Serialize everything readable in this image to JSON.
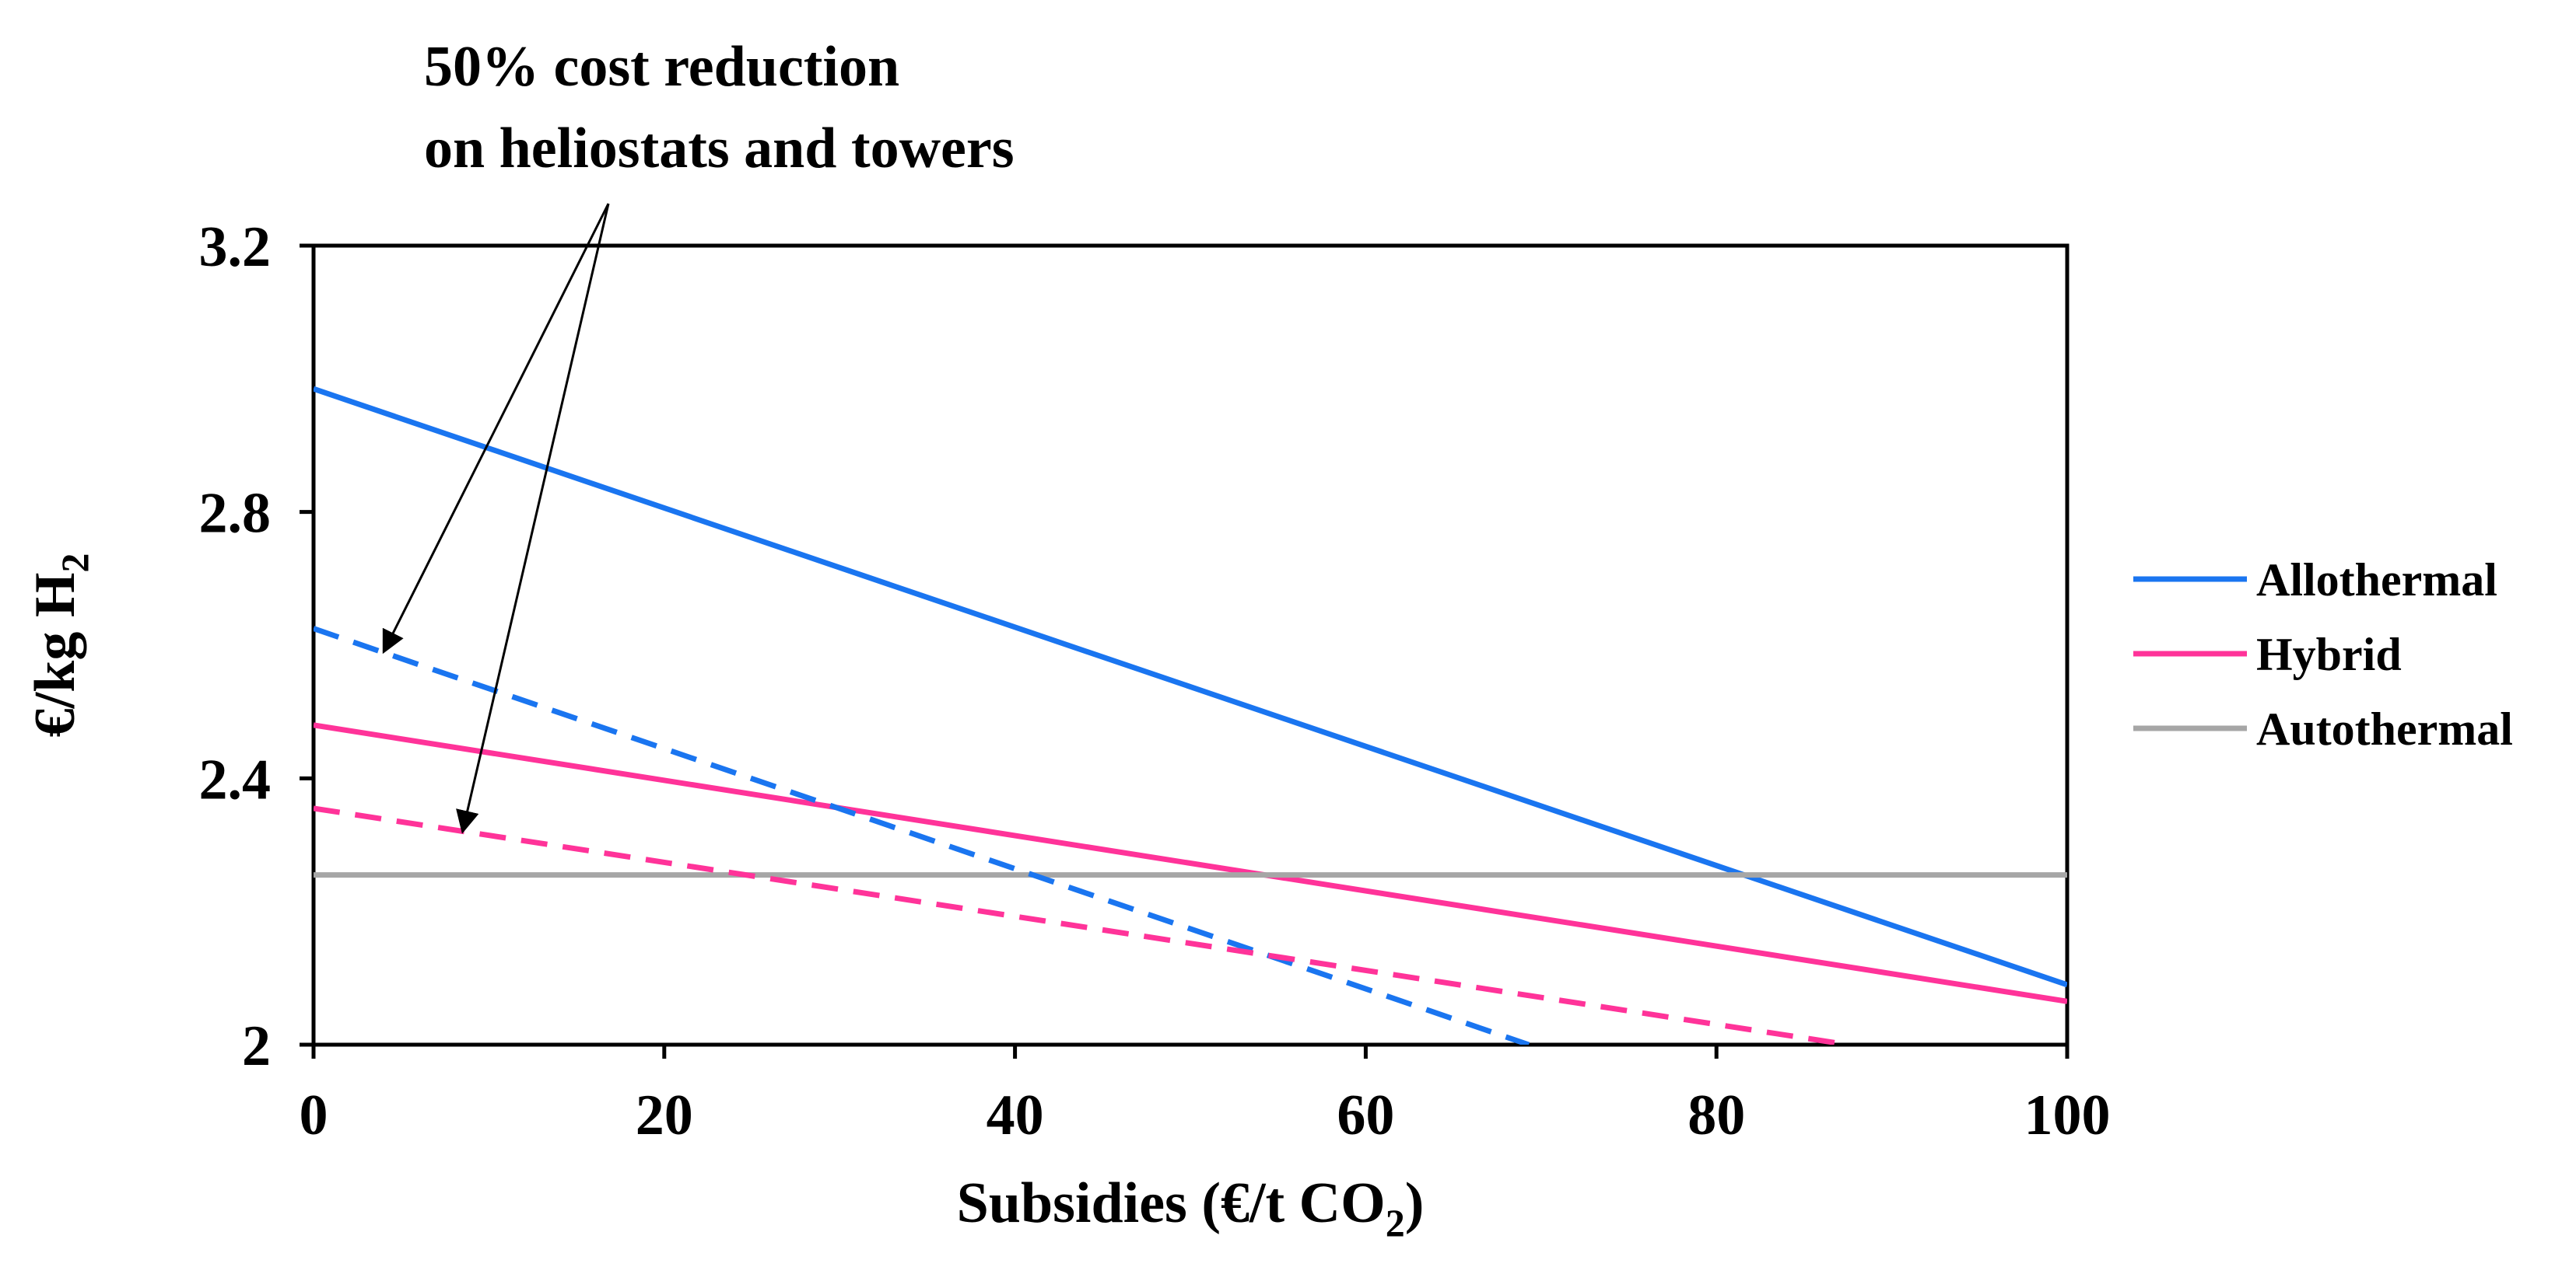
{
  "chart_data": {
    "type": "line",
    "title": "",
    "xlabel": "Subsidies (€/t CO",
    "xlabel_subscript": "2",
    "xlabel_suffix": ")",
    "ylabel": "€/kg H",
    "ylabel_subscript": "2",
    "xlim": [
      0,
      100
    ],
    "ylim": [
      2.0,
      3.2
    ],
    "xticks": [
      0,
      20,
      40,
      60,
      80,
      100
    ],
    "xtick_labels": [
      "0",
      "20",
      "40",
      "60",
      "80",
      "100"
    ],
    "yticks": [
      2.0,
      2.4,
      2.8,
      3.2
    ],
    "ytick_labels": [
      "2",
      "2.4",
      "2.8",
      "3.2"
    ],
    "grid": false,
    "legend_position": "right",
    "series": [
      {
        "name": "Allothermal",
        "label": "Allothermal",
        "color": "#1a75f0",
        "dash": "solid",
        "in_legend": true,
        "x": [
          0,
          100
        ],
        "y": [
          2.985,
          2.09
        ]
      },
      {
        "name": "Hybrid",
        "label": "Hybrid",
        "color": "#ff3399",
        "dash": "solid",
        "in_legend": true,
        "x": [
          0,
          100
        ],
        "y": [
          2.48,
          2.065
        ]
      },
      {
        "name": "Autothermal",
        "label": "Autothermal",
        "color": "#a6a6a6",
        "dash": "solid",
        "in_legend": true,
        "x": [
          0,
          100
        ],
        "y": [
          2.255,
          2.255
        ]
      },
      {
        "name": "Allothermal (50% cost reduction)",
        "color": "#1a75f0",
        "dash": "dashed",
        "in_legend": false,
        "x": [
          0,
          69.3
        ],
        "y": [
          2.625,
          2.0
        ]
      },
      {
        "name": "Hybrid (50% cost reduction)",
        "color": "#ff3399",
        "dash": "dashed",
        "in_legend": false,
        "x": [
          0,
          87.5
        ],
        "y": [
          2.355,
          2.0
        ]
      }
    ],
    "annotations": [
      {
        "lines": [
          "50% cost reduction",
          "on heliostats and towers"
        ],
        "arrow_targets": [
          {
            "series": "Allothermal (50% cost reduction)",
            "x": 4,
            "y": 2.59
          },
          {
            "series": "Hybrid (50% cost reduction)",
            "x": 8.5,
            "y": 2.32
          }
        ]
      }
    ]
  }
}
